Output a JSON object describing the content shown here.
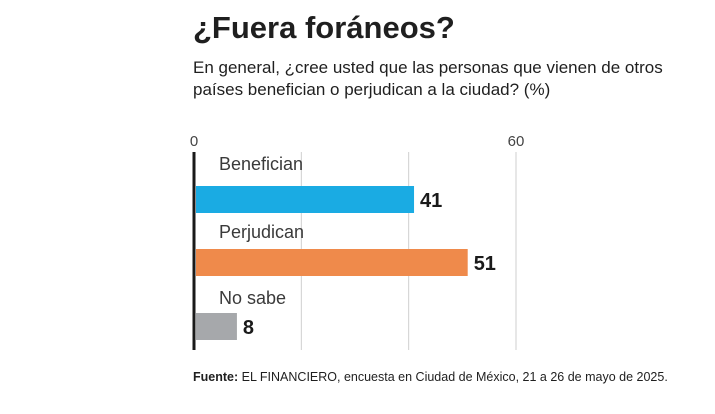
{
  "title": "¿Fuera foráneos?",
  "subtitle": "En general, ¿cree usted que las personas que vienen de otros países benefician o perjudican a la ciudad? (%)",
  "footer": {
    "label": "Fuente:",
    "text": "EL FINANCIERO, encuesta en Ciudad de México, 21 a 26 de mayo de 2025."
  },
  "chart_data": {
    "type": "bar",
    "orientation": "horizontal",
    "categories": [
      "Benefician",
      "Perjudican",
      "No sabe"
    ],
    "values": [
      41,
      51,
      8
    ],
    "colors": [
      "#1aabe3",
      "#ef8a4b",
      "#a6a8ab"
    ],
    "xlim": [
      0,
      60
    ],
    "tick_labels": [
      "0",
      "60"
    ],
    "grid": true
  }
}
